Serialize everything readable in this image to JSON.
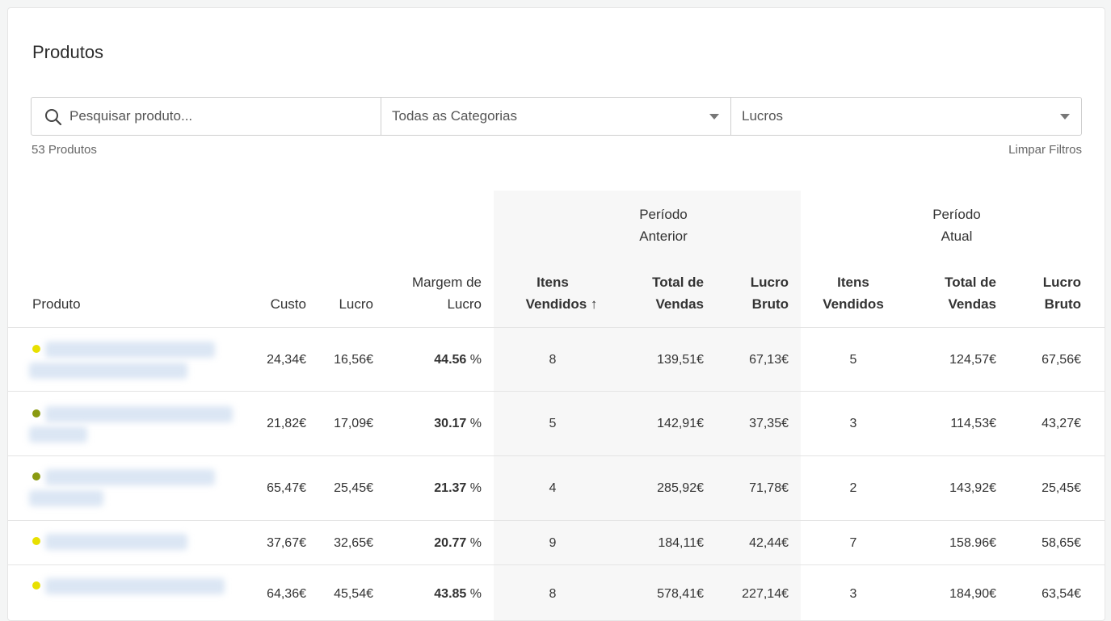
{
  "page": {
    "title": "Produtos"
  },
  "filters": {
    "search_placeholder": "Pesquisar produto...",
    "category_value": "Todas as Categorias",
    "metric_value": "Lucros"
  },
  "summary": {
    "count": "53 Produtos",
    "clear_label": "Limpar Filtros"
  },
  "groups": {
    "previous": [
      "Período",
      "Anterior"
    ],
    "current": [
      "Período",
      "Atual"
    ]
  },
  "columns": {
    "produto": "Produto",
    "custo": "Custo",
    "lucro": "Lucro",
    "margem": [
      "Margem de",
      "Lucro"
    ],
    "prev_itens": [
      "Itens",
      "Vendidos"
    ],
    "prev_sort_arrow": "↑",
    "prev_total": [
      "Total de",
      "Vendas"
    ],
    "prev_bruto": [
      "Lucro",
      "Bruto"
    ],
    "cur_itens": [
      "Itens",
      "Vendidos"
    ],
    "cur_total": [
      "Total de",
      "Vendas"
    ],
    "cur_bruto": [
      "Lucro",
      "Bruto"
    ]
  },
  "colors": {
    "yellow": "#e8e000",
    "olive": "#8a9a10"
  },
  "rows": [
    {
      "status": "yellow",
      "custo": "24,34€",
      "lucro": "16,56€",
      "margem": "44.56",
      "pct": " %",
      "prev_itens": "8",
      "prev_total": "139,51€",
      "prev_bruto": "67,13€",
      "cur_itens": "5",
      "cur_total": "124,57€",
      "cur_bruto": "67,56€"
    },
    {
      "status": "olive",
      "custo": "21,82€",
      "lucro": "17,09€",
      "margem": "30.17",
      "pct": " %",
      "prev_itens": "5",
      "prev_total": "142,91€",
      "prev_bruto": "37,35€",
      "cur_itens": "3",
      "cur_total": "114,53€",
      "cur_bruto": "43,27€"
    },
    {
      "status": "olive",
      "custo": "65,47€",
      "lucro": "25,45€",
      "margem": "21.37",
      "pct": " %",
      "prev_itens": "4",
      "prev_total": "285,92€",
      "prev_bruto": "71,78€",
      "cur_itens": "2",
      "cur_total": "143,92€",
      "cur_bruto": "25,45€"
    },
    {
      "status": "yellow",
      "custo": "37,67€",
      "lucro": "32,65€",
      "margem": "20.77",
      "pct": " %",
      "prev_itens": "9",
      "prev_total": "184,11€",
      "prev_bruto": "42,44€",
      "cur_itens": "7",
      "cur_total": "158.96€",
      "cur_bruto": "58,65€"
    },
    {
      "status": "yellow",
      "custo": "64,36€",
      "lucro": "45,54€",
      "margem": "43.85",
      "pct": " %",
      "prev_itens": "8",
      "prev_total": "578,41€",
      "prev_bruto": "227,14€",
      "cur_itens": "3",
      "cur_total": "184,90€",
      "cur_bruto": "63,54€"
    }
  ]
}
